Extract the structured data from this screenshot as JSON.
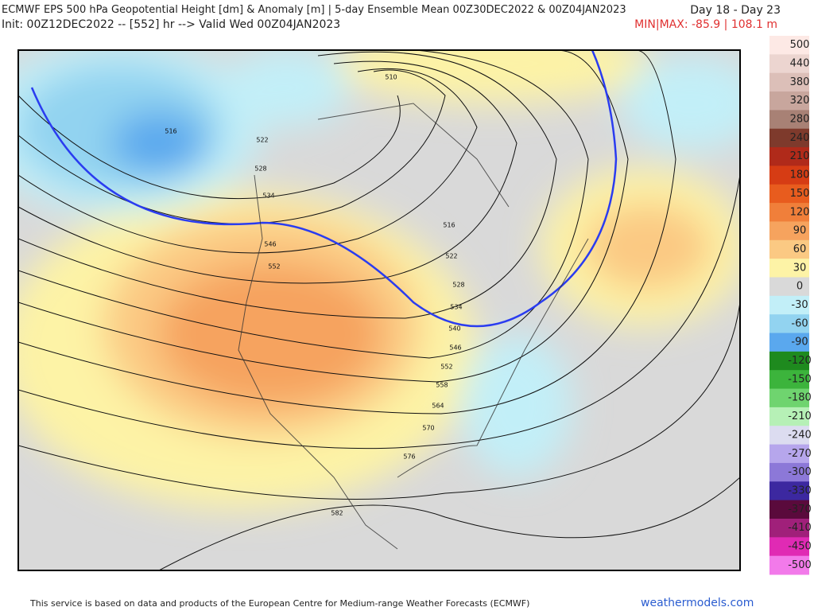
{
  "header": {
    "title": "ECMWF EPS 500 hPa Geopotential Height [dm] & Anomaly [m] | 5-day Ensemble Mean 00Z30DEC2022 & 00Z04JAN2023",
    "day_range": "Day 18 - Day 23",
    "init": "Init: 00Z12DEC2022 -- [552] hr --> Valid Wed 00Z04JAN2023",
    "minmax": "MIN|MAX: -85.9 | 108.1 m"
  },
  "map": {
    "contour_labels": [
      "516",
      "522",
      "528",
      "534",
      "546",
      "552",
      "510",
      "516",
      "522",
      "528",
      "534",
      "540",
      "546",
      "552",
      "558",
      "564",
      "570",
      "576",
      "582"
    ]
  },
  "colorbar": {
    "labels": [
      500,
      440,
      380,
      320,
      280,
      240,
      210,
      180,
      150,
      120,
      90,
      60,
      30,
      0,
      -30,
      -60,
      -90,
      -120,
      -150,
      -180,
      -210,
      -240,
      -270,
      -300,
      -330,
      -370,
      -410,
      -450,
      -500
    ],
    "colors": [
      "#fde9e5",
      "#ecd5d0",
      "#dcbfb8",
      "#c8a69d",
      "#a88175",
      "#7e3a2c",
      "#b02a1a",
      "#d63c14",
      "#e85c1e",
      "#f07f3a",
      "#f6a35e",
      "#fbc983",
      "#fdf3a6",
      "#d9d9d9",
      "#c2eff8",
      "#92d3f0",
      "#5aa8ee",
      "#1e8a1e",
      "#3cb43c",
      "#6fd46f",
      "#b6f0b6",
      "#dcdcf0",
      "#b6a6ec",
      "#8c78d8",
      "#3c28a0",
      "#5a0a3c",
      "#a0207a",
      "#e02ab4",
      "#f27aea"
    ]
  },
  "footer": {
    "notice": "This service is based on data and products of the European Centre for Medium-range Weather Forecasts (ECMWF)",
    "site": "weathermodels.com"
  }
}
